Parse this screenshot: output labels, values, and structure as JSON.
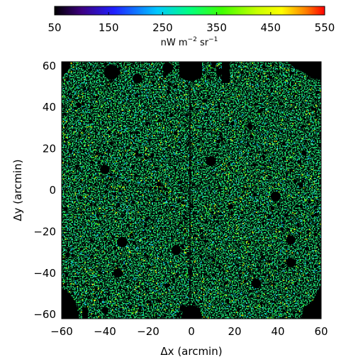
{
  "colorbar": {
    "ticks": [
      "50",
      "150",
      "250",
      "350",
      "450",
      "550"
    ],
    "tick_values": [
      50,
      150,
      250,
      350,
      450,
      550
    ],
    "range": [
      50,
      550
    ],
    "label_main": "nW m",
    "label_sup1": "−2",
    "label_mid": " sr",
    "label_sup2": "−1",
    "colors": [
      "#000000",
      "#3d0080",
      "#2020ff",
      "#00c8ff",
      "#00ff80",
      "#40ff00",
      "#c8ff00",
      "#ffff00",
      "#ff8000",
      "#ff0000"
    ]
  },
  "chart_data": {
    "type": "heatmap",
    "xlabel": "Δx (arcmin)",
    "ylabel": "Δy (arcmin)",
    "xlim": [
      -60,
      60
    ],
    "ylim": [
      -62,
      62
    ],
    "x_ticks": [
      -60,
      -40,
      -20,
      0,
      20,
      40,
      60
    ],
    "y_ticks": [
      -60,
      -40,
      -20,
      0,
      20,
      40,
      60
    ],
    "x_tick_labels": [
      "−60",
      "−40",
      "−20",
      "0",
      "20",
      "40",
      "60"
    ],
    "y_tick_labels": [
      "−60",
      "−40",
      "−20",
      "0",
      "20",
      "40",
      "60"
    ],
    "map_color": "#1ee87a",
    "mask_color": "#000000",
    "masked_sources": [
      {
        "x": -37,
        "y": 57,
        "r": 3.5
      },
      {
        "x": -11,
        "y": 59,
        "r": 2.5
      },
      {
        "x": -25,
        "y": 54,
        "r": 2.2
      },
      {
        "x": -40,
        "y": 10,
        "r": 2.2
      },
      {
        "x": 9,
        "y": 14,
        "r": 2.3
      },
      {
        "x": 13,
        "y": 57,
        "r": 1.6
      },
      {
        "x": 39,
        "y": -3,
        "r": 2.3
      },
      {
        "x": -32,
        "y": -25,
        "r": 2.4
      },
      {
        "x": -7,
        "y": -29,
        "r": 2.2
      },
      {
        "x": 46,
        "y": -24,
        "r": 2.1
      },
      {
        "x": 46,
        "y": -35,
        "r": 2.2
      },
      {
        "x": -34,
        "y": -40,
        "r": 2.1
      },
      {
        "x": 30,
        "y": -45,
        "r": 2.2
      },
      {
        "x": -4,
        "y": -57,
        "r": 1.6
      },
      {
        "x": -40,
        "y": -58,
        "r": 1.6
      },
      {
        "x": 27,
        "y": 31,
        "r": 1.3
      },
      {
        "x": -52,
        "y": 41,
        "r": 1.2
      },
      {
        "x": 18,
        "y": -8,
        "r": 1.2
      },
      {
        "x": -15,
        "y": 3,
        "r": 1.2
      },
      {
        "x": 52,
        "y": 18,
        "r": 1.2
      }
    ]
  }
}
